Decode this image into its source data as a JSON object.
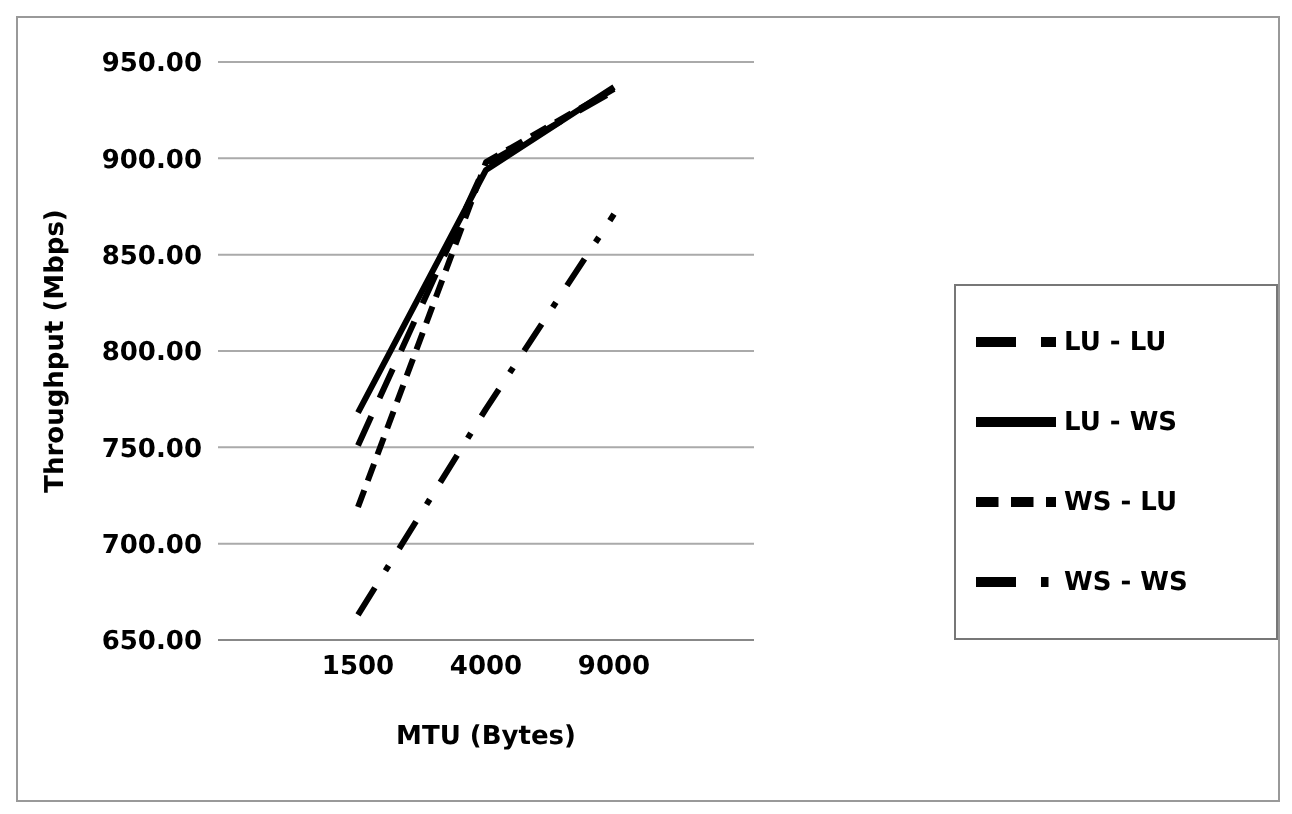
{
  "chart_data": {
    "type": "line",
    "xlabel": "MTU (Bytes)",
    "ylabel": "Throughput (Mbps)",
    "categories": [
      "1500",
      "4000",
      "9000"
    ],
    "series": [
      {
        "name": "LU - LU",
        "color": "#000000",
        "line_style": "longdash",
        "values": [
          751,
          897,
          935
        ]
      },
      {
        "name": "LU - WS",
        "color": "#000000",
        "line_style": "solid",
        "values": [
          768,
          894,
          937
        ]
      },
      {
        "name": "WS - LU",
        "color": "#000000",
        "line_style": "dashed",
        "values": [
          719,
          898,
          936
        ]
      },
      {
        "name": "WS - WS",
        "color": "#000000",
        "line_style": "dashdot",
        "values": [
          663,
          770,
          871
        ]
      }
    ],
    "ylim": [
      650,
      950
    ],
    "yticks": [
      {
        "value": 650,
        "label": "650.00"
      },
      {
        "value": 700,
        "label": "700.00"
      },
      {
        "value": 750,
        "label": "750.00"
      },
      {
        "value": 800,
        "label": "800.00"
      },
      {
        "value": 850,
        "label": "850.00"
      },
      {
        "value": 900,
        "label": "900.00"
      },
      {
        "value": 950,
        "label": "950.00"
      }
    ],
    "grid": "y",
    "legend": "right",
    "marker": "none"
  }
}
